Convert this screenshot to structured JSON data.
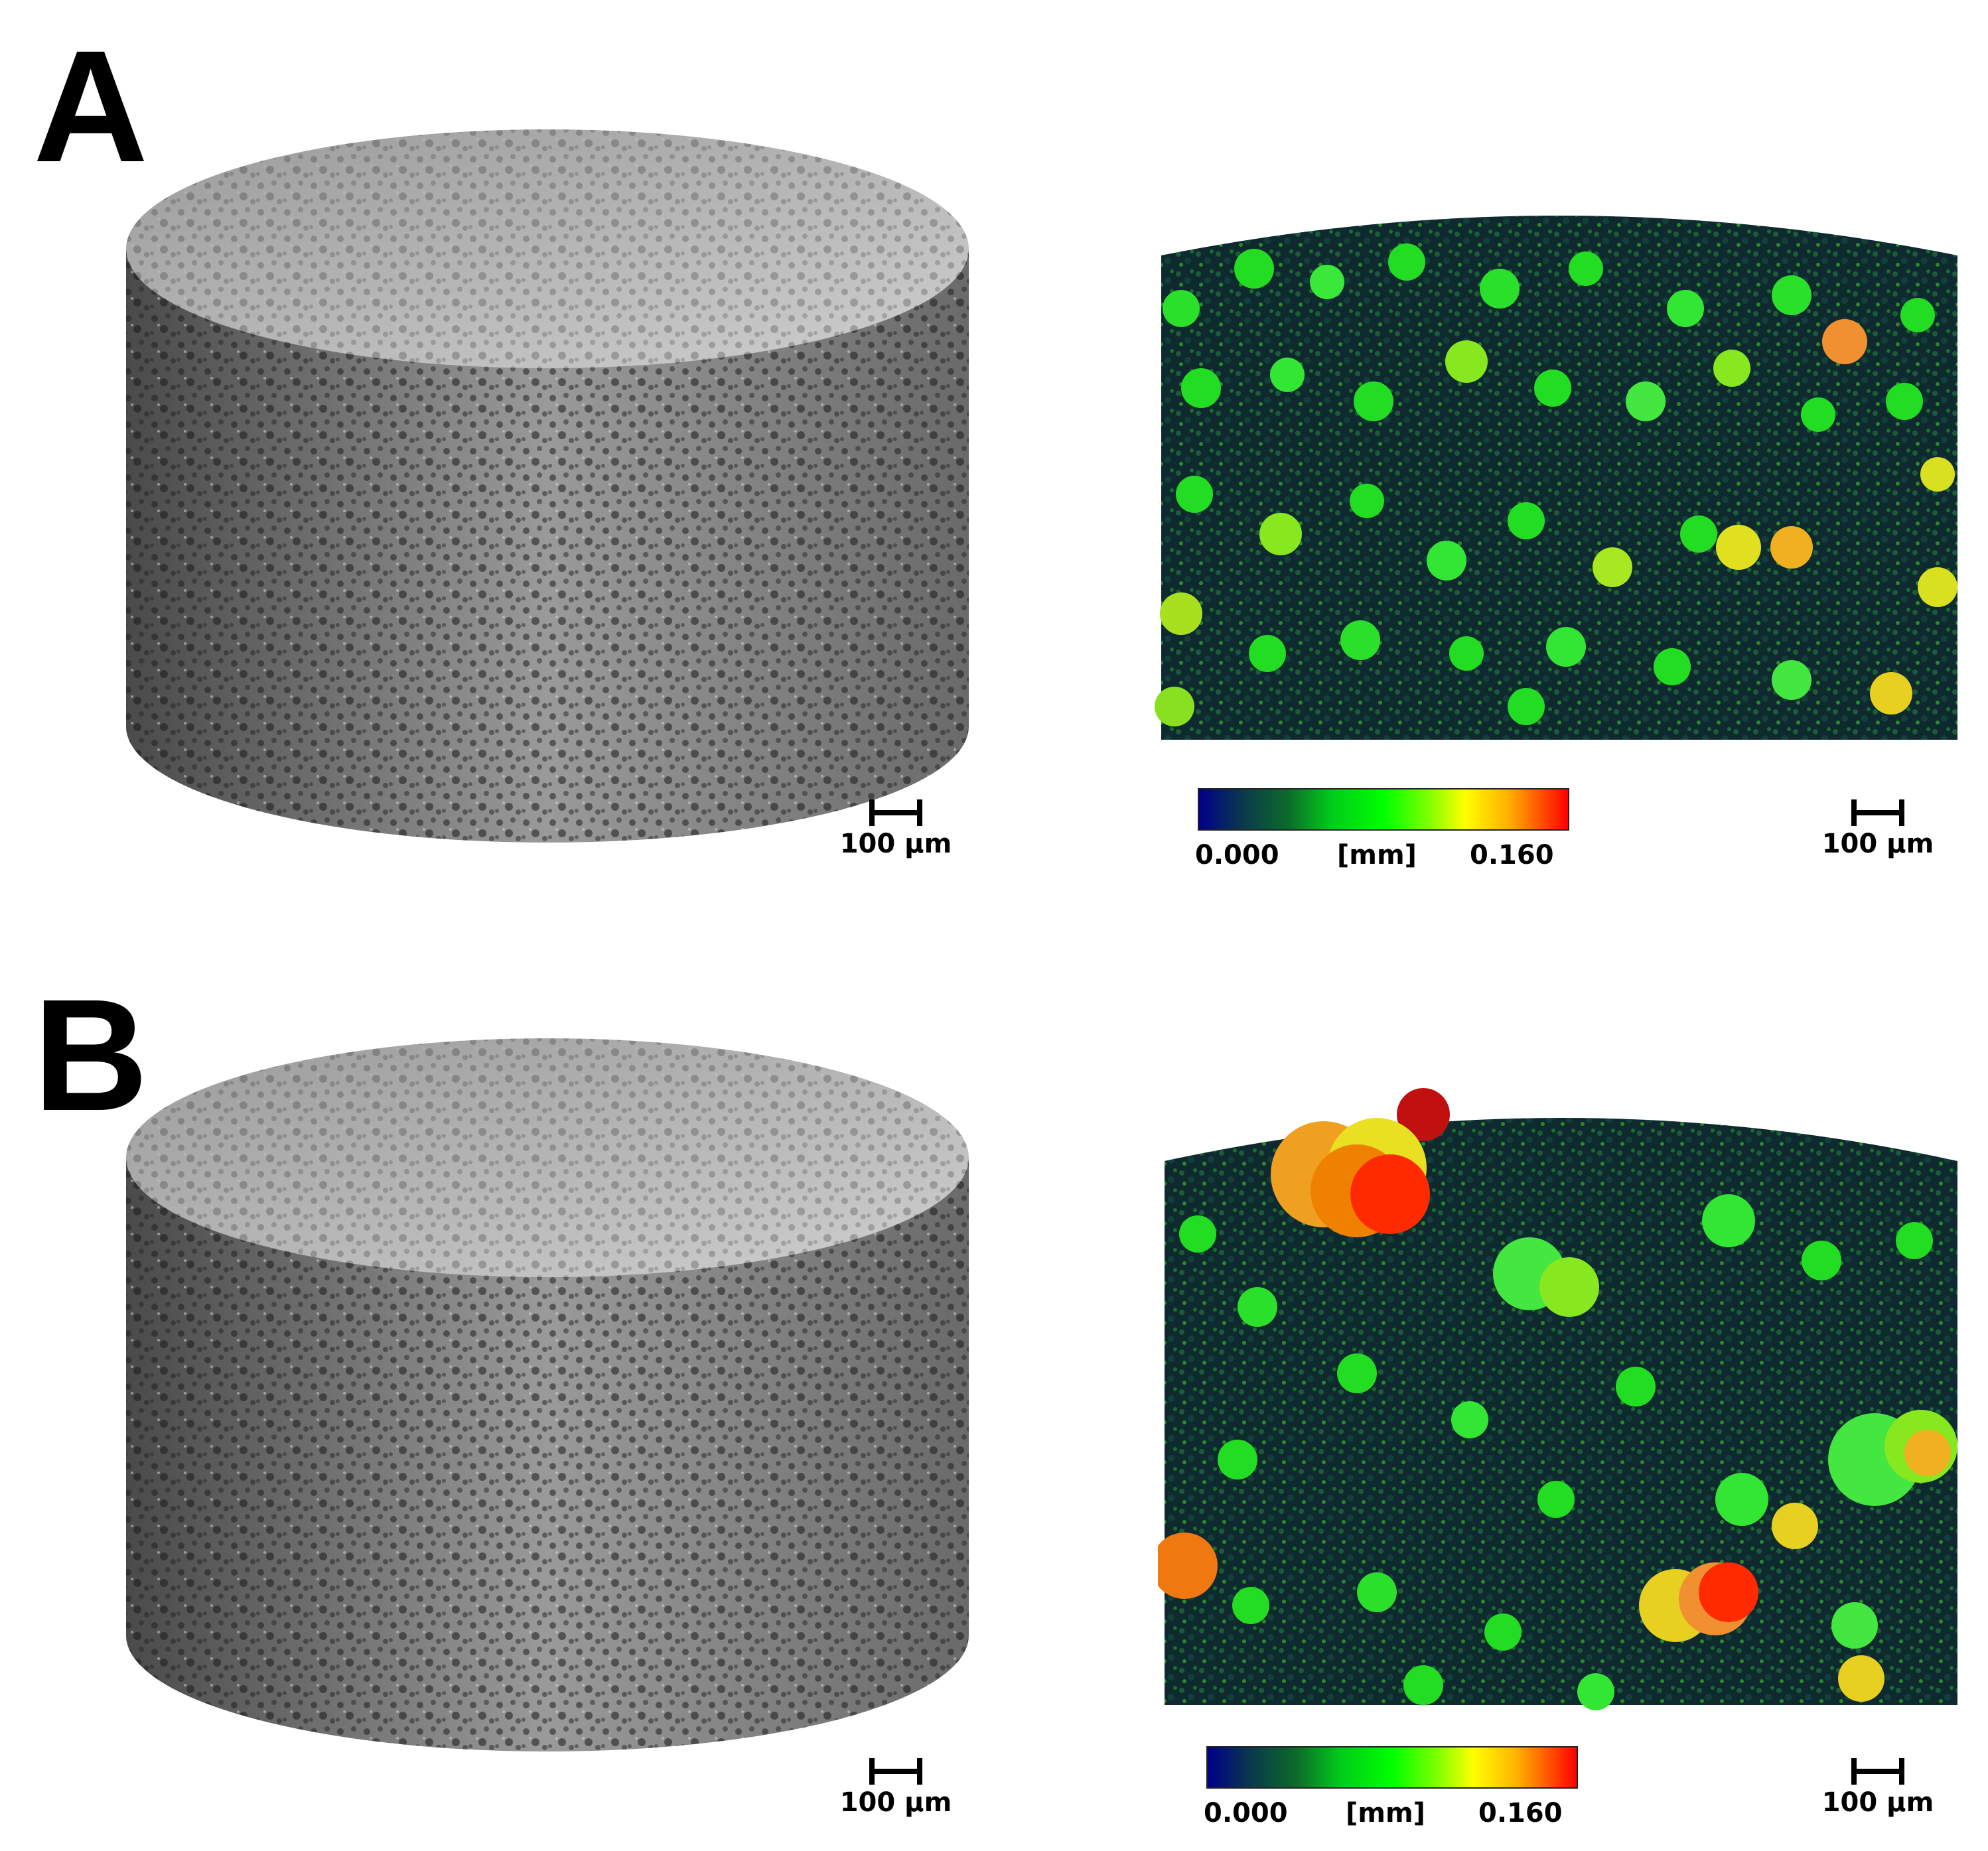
{
  "panels": [
    {
      "label": "A",
      "scale_left": "100 µm",
      "scale_right": "100 µm",
      "colorbar": {
        "min": "0.000",
        "unit": "[mm]",
        "max": "0.160"
      }
    },
    {
      "label": "B",
      "scale_left": "100 µm",
      "scale_right": "100 µm",
      "colorbar": {
        "min": "0.000",
        "unit": "[mm]",
        "max": "0.160"
      }
    }
  ],
  "colors": {
    "surface_gray": "#8c8c8c",
    "pore_dark": "#0e2a2e",
    "pore_green": "#22e020",
    "pore_yellow": "#e8e010",
    "pore_orange": "#f07810",
    "pore_red": "#ff2a00"
  }
}
